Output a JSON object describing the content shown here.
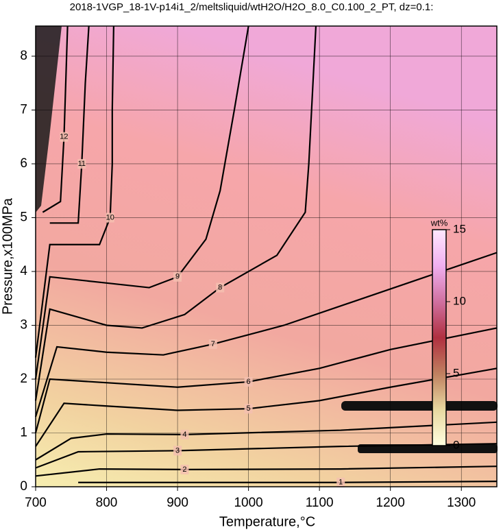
{
  "chart_data": {
    "type": "contour",
    "title": "2018-1VGP_18-1V-p14i1_2/meltsliquid/wtH2O/H2O_8.0_C0.100_2_PT, dz=0.1:",
    "x_label": "Temperature,°C",
    "y_label": "Pressure,x100MPa",
    "xlim": [
      700,
      1350
    ],
    "ylim": [
      0,
      8.56
    ],
    "xticks": [
      700,
      800,
      900,
      1000,
      1100,
      1200,
      1300
    ],
    "yticks": [
      0,
      1,
      2,
      3,
      4,
      5,
      6,
      7,
      8
    ],
    "grid": true,
    "line_color": "#000000",
    "series": [
      {
        "level": 1,
        "x": [
          760,
          900,
          1130,
          1350
        ],
        "y": [
          0.08,
          0.08,
          0.08,
          0.1
        ]
      },
      {
        "level": 2,
        "x": [
          700,
          790,
          910,
          1130,
          1350
        ],
        "y": [
          0.2,
          0.33,
          0.32,
          0.33,
          0.38
        ]
      },
      {
        "level": 3,
        "x": [
          700,
          760,
          900,
          1130,
          1350
        ],
        "y": [
          0.35,
          0.65,
          0.67,
          0.75,
          0.8
        ]
      },
      {
        "level": 4,
        "x": [
          700,
          750,
          800,
          910,
          1130,
          1350
        ],
        "y": [
          0.5,
          0.9,
          0.98,
          0.97,
          1.05,
          1.2
        ]
      },
      {
        "level": 5,
        "x": [
          700,
          740,
          800,
          900,
          1000,
          1100,
          1200,
          1350
        ],
        "y": [
          0.75,
          1.55,
          1.5,
          1.42,
          1.45,
          1.6,
          1.85,
          2.2
        ]
      },
      {
        "level": 6,
        "x": [
          700,
          720,
          780,
          900,
          1000,
          1100,
          1200,
          1350
        ],
        "y": [
          1.0,
          2.0,
          1.95,
          1.85,
          1.95,
          2.2,
          2.55,
          2.95
        ]
      },
      {
        "level": 7,
        "x": [
          700,
          730,
          800,
          880,
          950,
          1050,
          1150,
          1250,
          1350
        ],
        "y": [
          1.3,
          2.6,
          2.5,
          2.45,
          2.65,
          3.0,
          3.45,
          3.9,
          4.35
        ]
      },
      {
        "level": 8,
        "x": [
          700,
          720,
          800,
          850,
          910,
          960,
          1040,
          1080,
          1085,
          1095
        ],
        "y": [
          1.6,
          3.3,
          3.0,
          2.95,
          3.2,
          3.7,
          4.3,
          5.1,
          6.0,
          8.56
        ]
      },
      {
        "level": 9,
        "x": [
          700,
          720,
          790,
          860,
          900,
          940,
          960,
          980,
          1000
        ],
        "y": [
          2.0,
          3.9,
          3.8,
          3.7,
          3.9,
          4.6,
          5.5,
          7.0,
          8.56
        ]
      },
      {
        "level": 10,
        "x": [
          700,
          720,
          790,
          805,
          808,
          808,
          810
        ],
        "y": [
          2.4,
          4.5,
          4.5,
          5.0,
          6.0,
          7.0,
          8.56
        ]
      },
      {
        "level": 11,
        "x": [
          720,
          760,
          765,
          770,
          775
        ],
        "y": [
          4.9,
          4.9,
          6.0,
          7.5,
          8.56
        ]
      },
      {
        "level": 12,
        "x": [
          710,
          735,
          740,
          745
        ],
        "y": [
          5.1,
          5.3,
          6.5,
          8.56
        ]
      }
    ],
    "colorbar": {
      "label": "wt%",
      "lim": [
        0,
        15
      ],
      "ticks": [
        0,
        5,
        10,
        15
      ],
      "colors": [
        "#ffffe0",
        "#e8d8a0",
        "#c08060",
        "#b03040",
        "#d070a0",
        "#f0b0f0",
        "#ffe8ff"
      ]
    }
  }
}
